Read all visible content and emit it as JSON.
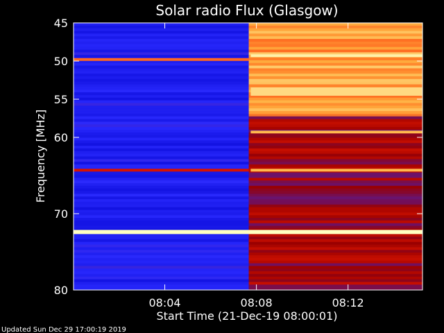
{
  "chart_data": {
    "type": "heatmap",
    "title": "Solar radio Flux (Glasgow)",
    "xlabel": "Start Time (21-Dec-19 08:00:01)",
    "ylabel": "Frequency [MHz]",
    "x_unit": "time (HH:MM, 21-Dec-19)",
    "xlim": [
      "08:00:01",
      "08:15:15"
    ],
    "ylim": [
      45,
      80
    ],
    "y_inverted": true,
    "x_ticks": [
      "08:04",
      "08:08",
      "08:12"
    ],
    "y_ticks": [
      45,
      50,
      55,
      60,
      70,
      80
    ],
    "colormap": [
      "#000040",
      "#0b0bd8",
      "#2b2bff",
      "#9a0000",
      "#ff2000",
      "#ffb040",
      "#ffffc0"
    ],
    "intensity_scale": "relative (0 = low, 1 = high)",
    "regions": [
      {
        "t_start": "08:00:01",
        "t_end": "08:07:40",
        "f_start": 45,
        "f_end": 80,
        "level": 0.28
      },
      {
        "t_start": "08:07:40",
        "t_end": "08:15:15",
        "f_start": 45,
        "f_end": 57,
        "level": 0.82
      },
      {
        "t_start": "08:07:40",
        "t_end": "08:15:15",
        "f_start": 57,
        "f_end": 80,
        "level": 0.5
      }
    ],
    "bands": [
      {
        "freq": 49.3,
        "t_start": "08:07:45",
        "t_end": "08:15:15",
        "level": 0.97
      },
      {
        "freq": 49.8,
        "t_start": "08:00:01",
        "t_end": "08:07:40",
        "level": 0.75
      },
      {
        "freq": 54.0,
        "t_start": "08:07:45",
        "t_end": "08:15:15",
        "level": 0.92
      },
      {
        "freq": 59.3,
        "t_start": "08:07:45",
        "t_end": "08:15:15",
        "level": 0.85
      },
      {
        "freq": 64.3,
        "t_start": "08:00:01",
        "t_end": "08:07:40",
        "level": 0.6
      },
      {
        "freq": 64.3,
        "t_start": "08:07:45",
        "t_end": "08:15:15",
        "level": 0.85
      },
      {
        "freq": 72.4,
        "t_start": "08:00:01",
        "t_end": "08:15:15",
        "level": 1.0
      }
    ]
  },
  "footer": "Updated Sun Dec 29 17:00:19 2019"
}
